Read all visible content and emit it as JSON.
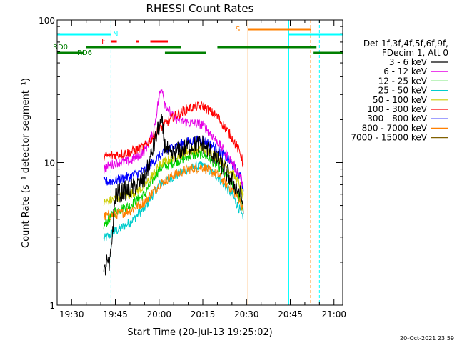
{
  "chart_data": {
    "type": "line",
    "title": "RHESSI Count Rates",
    "xlabel": "Start Time (20-Jul-13 19:25:02)",
    "ylabel": "Count Rate (s⁻¹ detector segment⁻¹)",
    "yscale": "log",
    "xlim": [
      "19:25:02",
      "21:03:00"
    ],
    "ylim": [
      1,
      100
    ],
    "x_ticks": [
      "19:30",
      "19:45",
      "20:00",
      "20:15",
      "20:30",
      "20:45",
      "21:00"
    ],
    "y_ticks": [
      "1",
      "10",
      "100"
    ],
    "grid": false,
    "legend_position": "right",
    "legend_header": [
      "Det 1f,3f,4f,5f,6f,9f,",
      "FDecim 1, Att 0"
    ],
    "footer": "20-Oct-2021 23:59",
    "data_gap": [
      "20:30:00",
      "21:03:00"
    ],
    "series": [
      {
        "name": "3 - 6 keV",
        "color": "#000000",
        "x": [
          "19:41",
          "19:42",
          "19:43",
          "19:45",
          "19:50",
          "19:55",
          "20:00",
          "20:01",
          "20:02",
          "20:04",
          "20:06",
          "20:10",
          "20:15",
          "20:20",
          "20:25",
          "20:28",
          "20:29"
        ],
        "y": [
          1.6,
          2.0,
          1.8,
          6.0,
          6.5,
          7.5,
          18.0,
          19.0,
          13.0,
          11.0,
          12.0,
          13.0,
          13.5,
          10.5,
          7.5,
          6.0,
          5.0
        ]
      },
      {
        "name": "6 - 12 keV",
        "color": "#e600e6",
        "x": [
          "19:41",
          "19:43",
          "19:45",
          "19:50",
          "19:55",
          "19:58",
          "20:00",
          "20:01",
          "20:02",
          "20:04",
          "20:06",
          "20:10",
          "20:15",
          "20:20",
          "20:25",
          "20:28",
          "20:29"
        ],
        "y": [
          9.0,
          9.5,
          10.0,
          10.2,
          12.0,
          16.0,
          29.0,
          34.0,
          26.0,
          22.0,
          20.0,
          19.0,
          18.5,
          14.0,
          10.0,
          8.0,
          6.5
        ]
      },
      {
        "name": "12 - 25 keV",
        "color": "#00d000",
        "x": [
          "19:41",
          "19:45",
          "19:50",
          "19:55",
          "20:00",
          "20:05",
          "20:10",
          "20:15",
          "20:20",
          "20:25",
          "20:28",
          "20:29"
        ],
        "y": [
          3.6,
          4.6,
          5.0,
          6.0,
          9.0,
          10.0,
          11.0,
          11.5,
          9.5,
          7.0,
          5.5,
          4.5
        ]
      },
      {
        "name": "25 - 50 keV",
        "color": "#00cccc",
        "x": [
          "19:41",
          "19:45",
          "19:50",
          "19:55",
          "20:00",
          "20:05",
          "20:10",
          "20:15",
          "20:20",
          "20:25",
          "20:28",
          "20:29"
        ],
        "y": [
          2.9,
          3.3,
          3.8,
          4.8,
          7.0,
          8.0,
          9.0,
          9.5,
          8.0,
          6.0,
          4.5,
          3.8
        ]
      },
      {
        "name": "50 - 100 keV",
        "color": "#cccc00",
        "x": [
          "19:41",
          "19:45",
          "19:50",
          "19:55",
          "20:00",
          "20:05",
          "20:10",
          "20:15",
          "20:20",
          "20:25",
          "20:28",
          "20:29"
        ],
        "y": [
          5.2,
          5.6,
          6.0,
          6.8,
          9.5,
          11.0,
          12.0,
          12.5,
          11.0,
          8.5,
          6.8,
          5.5
        ]
      },
      {
        "name": "100 - 300 keV",
        "color": "#ff0000",
        "x": [
          "19:41",
          "19:45",
          "19:50",
          "19:55",
          "20:00",
          "20:05",
          "20:10",
          "20:15",
          "20:20",
          "20:25",
          "20:28",
          "20:29"
        ],
        "y": [
          11.0,
          11.3,
          11.8,
          13.0,
          17.0,
          21.0,
          24.0,
          25.0,
          21.0,
          15.0,
          11.5,
          9.5
        ]
      },
      {
        "name": "300 - 800 keV",
        "color": "#0000ff",
        "x": [
          "19:41",
          "19:45",
          "19:50",
          "19:55",
          "20:00",
          "20:05",
          "20:10",
          "20:15",
          "20:20",
          "20:25",
          "20:28",
          "20:29"
        ],
        "y": [
          7.3,
          7.5,
          8.0,
          8.8,
          11.0,
          13.0,
          14.0,
          14.5,
          12.5,
          9.8,
          7.8,
          6.5
        ]
      },
      {
        "name": "800 - 7000 keV",
        "color": "#ff8000",
        "x": [
          "19:41",
          "19:45",
          "19:50",
          "19:55",
          "20:00",
          "20:05",
          "20:10",
          "20:15",
          "20:20",
          "20:25",
          "20:28",
          "20:29"
        ],
        "y": [
          4.2,
          4.3,
          4.6,
          5.3,
          7.0,
          8.2,
          9.0,
          9.3,
          8.2,
          6.5,
          5.3,
          4.4
        ]
      },
      {
        "name": "7000 - 15000 keV",
        "color": "#806000",
        "x": [],
        "y": []
      }
    ],
    "flag_bars": [
      {
        "label": "N",
        "color": "#00ffff",
        "segments": [
          [
            "19:25:02",
            "19:43:30"
          ],
          [
            "20:44:30",
            "21:03:00"
          ]
        ]
      },
      {
        "label": "F",
        "color": "#ff0000",
        "segments": [
          [
            "19:43:30",
            "19:45:30"
          ],
          [
            "19:52:00",
            "19:53:00"
          ],
          [
            "19:57:00",
            "20:03:00"
          ]
        ]
      },
      {
        "label": "S",
        "color": "#ff8000",
        "segments": [
          [
            "20:30:30",
            "20:52:00"
          ]
        ]
      },
      {
        "label": "RD0",
        "color": "#008000",
        "segments": [
          [
            "19:35:00",
            "20:07:30"
          ],
          [
            "20:20:00",
            "20:54:00"
          ]
        ]
      },
      {
        "label": "RD6",
        "color": "#008000",
        "segments": [
          [
            "19:25:02",
            "19:34:00"
          ],
          [
            "20:02:00",
            "20:16:00"
          ],
          [
            "20:53:00",
            "21:03:00"
          ]
        ]
      }
    ],
    "vertical_markers": [
      {
        "time": "19:25:02",
        "color": "#00ffff",
        "style": "solid"
      },
      {
        "time": "19:43:30",
        "color": "#00ffff",
        "style": "dashed"
      },
      {
        "time": "20:30:30",
        "color": "#ff8000",
        "style": "solid"
      },
      {
        "time": "20:44:30",
        "color": "#00ffff",
        "style": "solid"
      },
      {
        "time": "20:52:00",
        "color": "#ff8000",
        "style": "dashed"
      },
      {
        "time": "20:55:00",
        "color": "#00ffff",
        "style": "dashed"
      }
    ]
  }
}
